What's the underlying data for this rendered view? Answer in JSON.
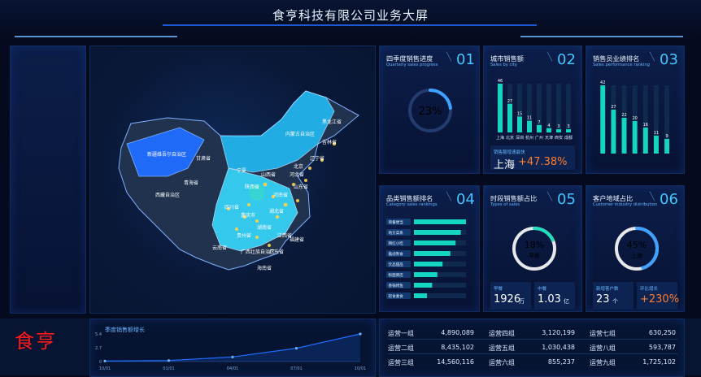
{
  "header": {
    "title": "食亨科技有限公司业务大屏"
  },
  "cards": {
    "c01": {
      "title": "四季度销售进度",
      "subtitle": "Quarterly sales progress",
      "num": "01",
      "progress_label": "23%",
      "progress_value": 0.23
    },
    "c02": {
      "title": "城市销售额",
      "subtitle": "Sales by city",
      "num": "02",
      "chart_data": {
        "type": "bar",
        "categories": [
          "上海",
          "北京",
          "深圳",
          "杭州",
          "广州",
          "天津",
          "西安",
          "成都"
        ],
        "values": [
          46,
          27,
          15,
          11,
          7,
          4,
          3,
          3
        ]
      },
      "highlight_label": "销售额增速最快",
      "highlight_city": "上海",
      "highlight_value": "+47.38%"
    },
    "c03": {
      "title": "销售员业绩排名",
      "subtitle": "Sales performance ranking",
      "num": "03",
      "chart_data": {
        "type": "bar",
        "values": [
          42,
          27,
          22,
          20,
          16,
          11,
          9
        ]
      }
    },
    "c04": {
      "title": "品类销售额排名",
      "subtitle": "Category sales rankings",
      "num": "04",
      "chart_data": {
        "type": "bar",
        "categories": [
          "简餐便当",
          "地方菜系",
          "网红小吃",
          "酱卤熟食",
          "饮品甜品",
          "粉面粥店",
          "香锅烤鱼",
          "轻食素食"
        ],
        "values": [
          1.0,
          0.9,
          0.8,
          0.7,
          0.55,
          0.45,
          0.35,
          0.25
        ]
      }
    },
    "c05": {
      "title": "时段销售额占比",
      "subtitle": "Types of sales",
      "num": "05",
      "ring_label": "18%",
      "ring_name": "早餐",
      "ring_value": 0.18,
      "stats": [
        {
          "label": "早餐",
          "value": "1926",
          "unit": "万"
        },
        {
          "label": "中餐",
          "value": "1.03",
          "unit": "亿"
        }
      ]
    },
    "c06": {
      "title": "客户地域占比",
      "subtitle": "Customer industry distribution",
      "num": "06",
      "ring_label": "45%",
      "ring_name": "上海",
      "ring_value": 0.45,
      "stats": [
        {
          "label": "新增客户数",
          "value": "23",
          "unit": "个"
        },
        {
          "label": "环比增长",
          "value": "+230%",
          "unit": ""
        }
      ]
    }
  },
  "map": {
    "labels": [
      "新疆维吾尔自治区",
      "西藏自治区",
      "青海省",
      "甘肃省",
      "内蒙古自治区",
      "黑龙江省",
      "吉林省",
      "辽宁省",
      "山西省",
      "河北省",
      "北京",
      "山东省",
      "河南省",
      "四川省",
      "湖北省",
      "湖南省",
      "重庆市",
      "贵州省",
      "云南省",
      "广西壮族自治区",
      "广东省",
      "江西省",
      "福建省",
      "海南省",
      "陕西省",
      "宁夏"
    ]
  },
  "bottom_chart": {
    "title": "季度销售额增长",
    "chart_data": {
      "type": "line",
      "x": [
        "10/01",
        "01/01",
        "04/01",
        "07/01",
        "10/01"
      ],
      "y_ticks": [
        "0",
        "2.7",
        "5.4"
      ],
      "values": [
        0.1,
        0.2,
        0.9,
        2.6,
        5.4
      ]
    }
  },
  "table": {
    "rows": [
      [
        {
          "name": "运营一组",
          "value": "4,890,089"
        },
        {
          "name": "运营四组",
          "value": "3,120,199"
        },
        {
          "name": "运营七组",
          "value": "630,250"
        }
      ],
      [
        {
          "name": "运营二组",
          "value": "8,435,102"
        },
        {
          "name": "运营五组",
          "value": "1,030,438"
        },
        {
          "name": "运营八组",
          "value": "593,787"
        }
      ],
      [
        {
          "name": "运营三组",
          "value": "14,560,116"
        },
        {
          "name": "运营六组",
          "value": "855,237"
        },
        {
          "name": "运营九组",
          "value": "1,725,102"
        }
      ]
    ]
  },
  "logo": {
    "text": "食亨"
  },
  "colors": {
    "accent": "#1f6dff",
    "teal": "#14d6c0",
    "orange": "#ff7b2e",
    "cyan": "#45c6ff"
  }
}
